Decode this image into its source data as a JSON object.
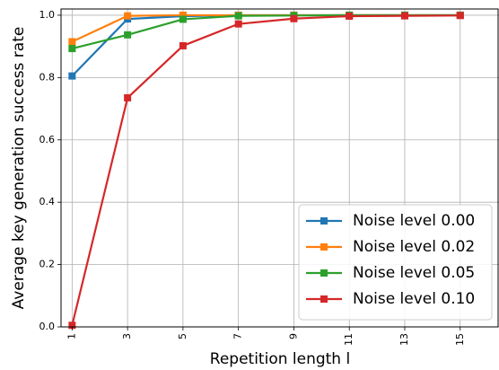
{
  "chart_data": {
    "type": "line",
    "title": "",
    "xlabel": "Repetition length l",
    "ylabel": "Average key generation success rate",
    "x": [
      1,
      3,
      5,
      7,
      9,
      11,
      13,
      15
    ],
    "x_tick_labels": [
      "1",
      "3",
      "5",
      "7",
      "9",
      "11",
      "13",
      "15"
    ],
    "y_tick_labels": [
      "0.0",
      "0.2",
      "0.4",
      "0.6",
      "0.8",
      "1.0"
    ],
    "y_ticks": [
      0,
      0.2,
      0.4,
      0.6,
      0.8,
      1.0
    ],
    "xlim": [
      0.6,
      16.4
    ],
    "ylim": [
      0,
      1.02
    ],
    "grid": true,
    "legend_position": "lower-right",
    "marker": "square",
    "series": [
      {
        "name": "Noise level 0.00",
        "color": "#1f77b4",
        "values": [
          0.805,
          0.988,
          0.997,
          1.0,
          1.0,
          1.0,
          1.0,
          1.0
        ]
      },
      {
        "name": "Noise level 0.02",
        "color": "#ff7f0e",
        "values": [
          0.915,
          0.998,
          1.0,
          1.0,
          1.0,
          1.0,
          1.0,
          1.0
        ]
      },
      {
        "name": "Noise level 0.05",
        "color": "#2ca02c",
        "values": [
          0.893,
          0.937,
          0.987,
          0.998,
          0.999,
          1.0,
          1.0,
          1.0
        ]
      },
      {
        "name": "Noise level 0.10",
        "color": "#d62728",
        "values": [
          0.005,
          0.735,
          0.902,
          0.972,
          0.989,
          0.997,
          0.998,
          0.999
        ]
      }
    ]
  }
}
